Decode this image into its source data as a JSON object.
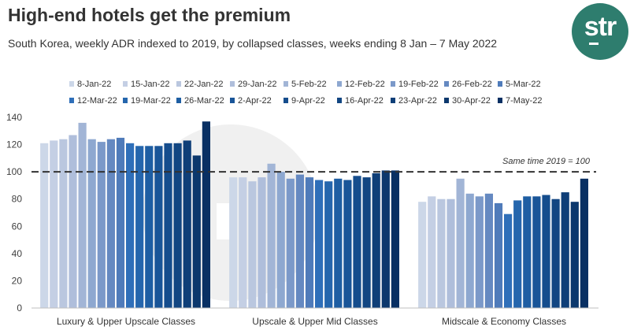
{
  "chart_data": {
    "type": "bar",
    "title": "High-end hotels get the premium",
    "subtitle": "South Korea, weekly ADR indexed to 2019, by collapsed classes, weeks ending 8 Jan – 7 May 2022",
    "brand": "str",
    "xlabel": "",
    "ylabel": "",
    "ylim": [
      0,
      140
    ],
    "yticks": [
      0,
      20,
      40,
      60,
      80,
      100,
      120,
      140
    ],
    "reference_line": {
      "value": 100,
      "label": "Same time 2019 = 100"
    },
    "categories": [
      "Luxury & Upper Upscale Classes",
      "Upscale & Upper Mid Classes",
      "Midscale & Economy Classes"
    ],
    "legend_position": "top",
    "series": [
      {
        "name": "8-Jan-22",
        "color": "#ccd7e8",
        "values": [
          121,
          96,
          78
        ]
      },
      {
        "name": "15-Jan-22",
        "color": "#c4cfe4",
        "values": [
          123,
          96,
          82
        ]
      },
      {
        "name": "22-Jan-22",
        "color": "#bac7df",
        "values": [
          124,
          93,
          80
        ]
      },
      {
        "name": "29-Jan-22",
        "color": "#afbedb",
        "values": [
          127,
          96,
          80
        ]
      },
      {
        "name": "5-Feb-22",
        "color": "#a2b5d6",
        "values": [
          136,
          106,
          95
        ]
      },
      {
        "name": "12-Feb-22",
        "color": "#8ea8d0",
        "values": [
          124,
          100,
          84
        ]
      },
      {
        "name": "19-Feb-22",
        "color": "#7b99c9",
        "values": [
          122,
          95,
          82
        ]
      },
      {
        "name": "26-Feb-22",
        "color": "#6589c1",
        "values": [
          124,
          98,
          84
        ]
      },
      {
        "name": "5-Mar-22",
        "color": "#4f7bba",
        "values": [
          125,
          96,
          77
        ]
      },
      {
        "name": "12-Mar-22",
        "color": "#2f6fb9",
        "values": [
          121,
          94,
          69
        ]
      },
      {
        "name": "19-Mar-22",
        "color": "#2566ad",
        "values": [
          119,
          93,
          79
        ]
      },
      {
        "name": "26-Mar-22",
        "color": "#1e5ea3",
        "values": [
          119,
          95,
          82
        ]
      },
      {
        "name": "2-Apr-22",
        "color": "#195598",
        "values": [
          119,
          94,
          82
        ]
      },
      {
        "name": "9-Apr-22",
        "color": "#154d8d",
        "values": [
          121,
          97,
          83
        ]
      },
      {
        "name": "16-Apr-22",
        "color": "#124682",
        "values": [
          121,
          96,
          80
        ]
      },
      {
        "name": "23-Apr-22",
        "color": "#0f3f78",
        "values": [
          123,
          99,
          85
        ]
      },
      {
        "name": "30-Apr-22",
        "color": "#0c386d",
        "values": [
          112,
          101,
          78
        ]
      },
      {
        "name": "7-May-22",
        "color": "#093063",
        "values": [
          137,
          101,
          95
        ]
      }
    ]
  }
}
